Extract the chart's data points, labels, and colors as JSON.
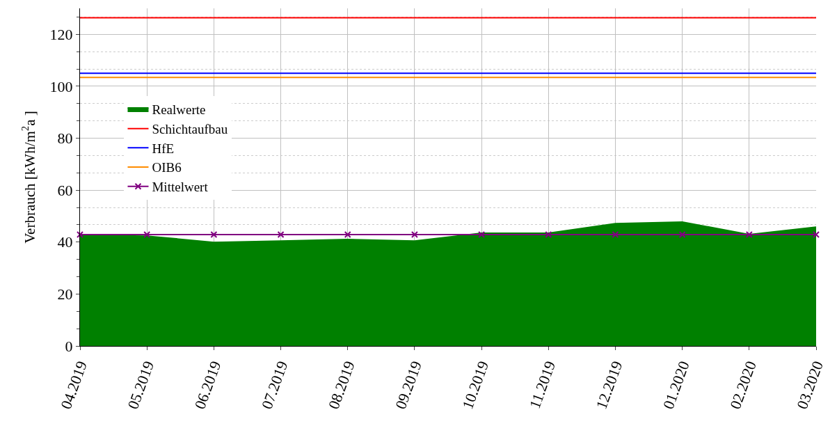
{
  "chart_data": {
    "type": "line",
    "ylabel": "Verbrauch [kWh/m$^{2}$a ]",
    "categories": [
      "04.2019",
      "05.2019",
      "06.2019",
      "07.2019",
      "08.2019",
      "09.2019",
      "10.2019",
      "11.2019",
      "12.2019",
      "01.2020",
      "02.2020",
      "03.2020"
    ],
    "series": [
      {
        "name": "Realwerte",
        "type": "area",
        "color": "#008000",
        "values": [
          42.6,
          42.3,
          39.9,
          40.4,
          41.0,
          40.4,
          43.4,
          43.4,
          47.1,
          47.7,
          42.9,
          45.8
        ]
      },
      {
        "name": "Schichtaufbau",
        "color": "#ff0000",
        "values": [
          126.4,
          126.4,
          126.4,
          126.4,
          126.4,
          126.4,
          126.4,
          126.4,
          126.4,
          126.4,
          126.4,
          126.4
        ]
      },
      {
        "name": "HfE",
        "color": "#0000ff",
        "values": [
          105.0,
          105.0,
          105.0,
          105.0,
          105.0,
          105.0,
          105.0,
          105.0,
          105.0,
          105.0,
          105.0,
          105.0
        ]
      },
      {
        "name": "OIB6",
        "color": "#ff8c00",
        "values": [
          103.4,
          103.4,
          103.4,
          103.4,
          103.4,
          103.4,
          103.4,
          103.4,
          103.4,
          103.4,
          103.4,
          103.4
        ]
      },
      {
        "name": "Mittelwert",
        "color": "#800080",
        "marker": "cross",
        "values": [
          42.9,
          42.9,
          42.9,
          42.9,
          42.9,
          42.9,
          42.9,
          42.9,
          42.9,
          42.9,
          42.9,
          42.9
        ]
      }
    ],
    "ylim": [
      0,
      130
    ],
    "yticks": [
      0,
      20,
      40,
      60,
      80,
      100,
      120
    ],
    "grid": true,
    "legend": "top left"
  }
}
